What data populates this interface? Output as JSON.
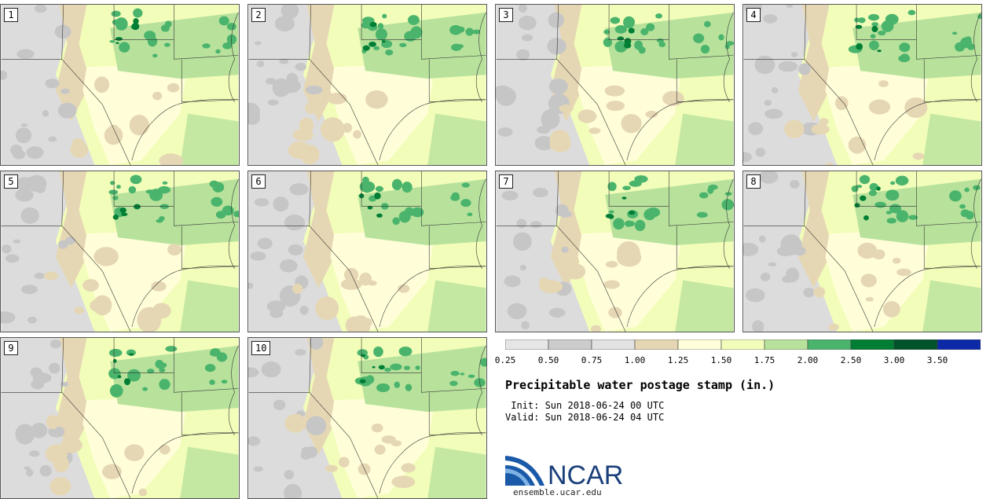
{
  "stamps": [
    {
      "label": "1"
    },
    {
      "label": "2"
    },
    {
      "label": "3"
    },
    {
      "label": "4"
    },
    {
      "label": "5"
    },
    {
      "label": "6"
    },
    {
      "label": "7"
    },
    {
      "label": "8"
    },
    {
      "label": "9"
    },
    {
      "label": "10"
    }
  ],
  "colorbar": {
    "colors": [
      "#e6e6e6",
      "#cccccc",
      "#e2e2e2",
      "#e6d7b4",
      "#fffed8",
      "#f2fdb9",
      "#b8e29c",
      "#4bb46c",
      "#007e34",
      "#00532b",
      "#0c2aa7"
    ],
    "ticks": [
      "0.25",
      "0.50",
      "0.75",
      "1.00",
      "1.25",
      "1.50",
      "1.75",
      "2.00",
      "2.50",
      "3.00",
      "3.50"
    ]
  },
  "title": "Precipitable water postage stamp (in.)",
  "init": " Init: Sun 2018-06-24 00 UTC",
  "valid": "Valid: Sun 2018-06-24 04 UTC",
  "logo": {
    "text": "NCAR",
    "url": "ensemble.ucar.edu"
  }
}
